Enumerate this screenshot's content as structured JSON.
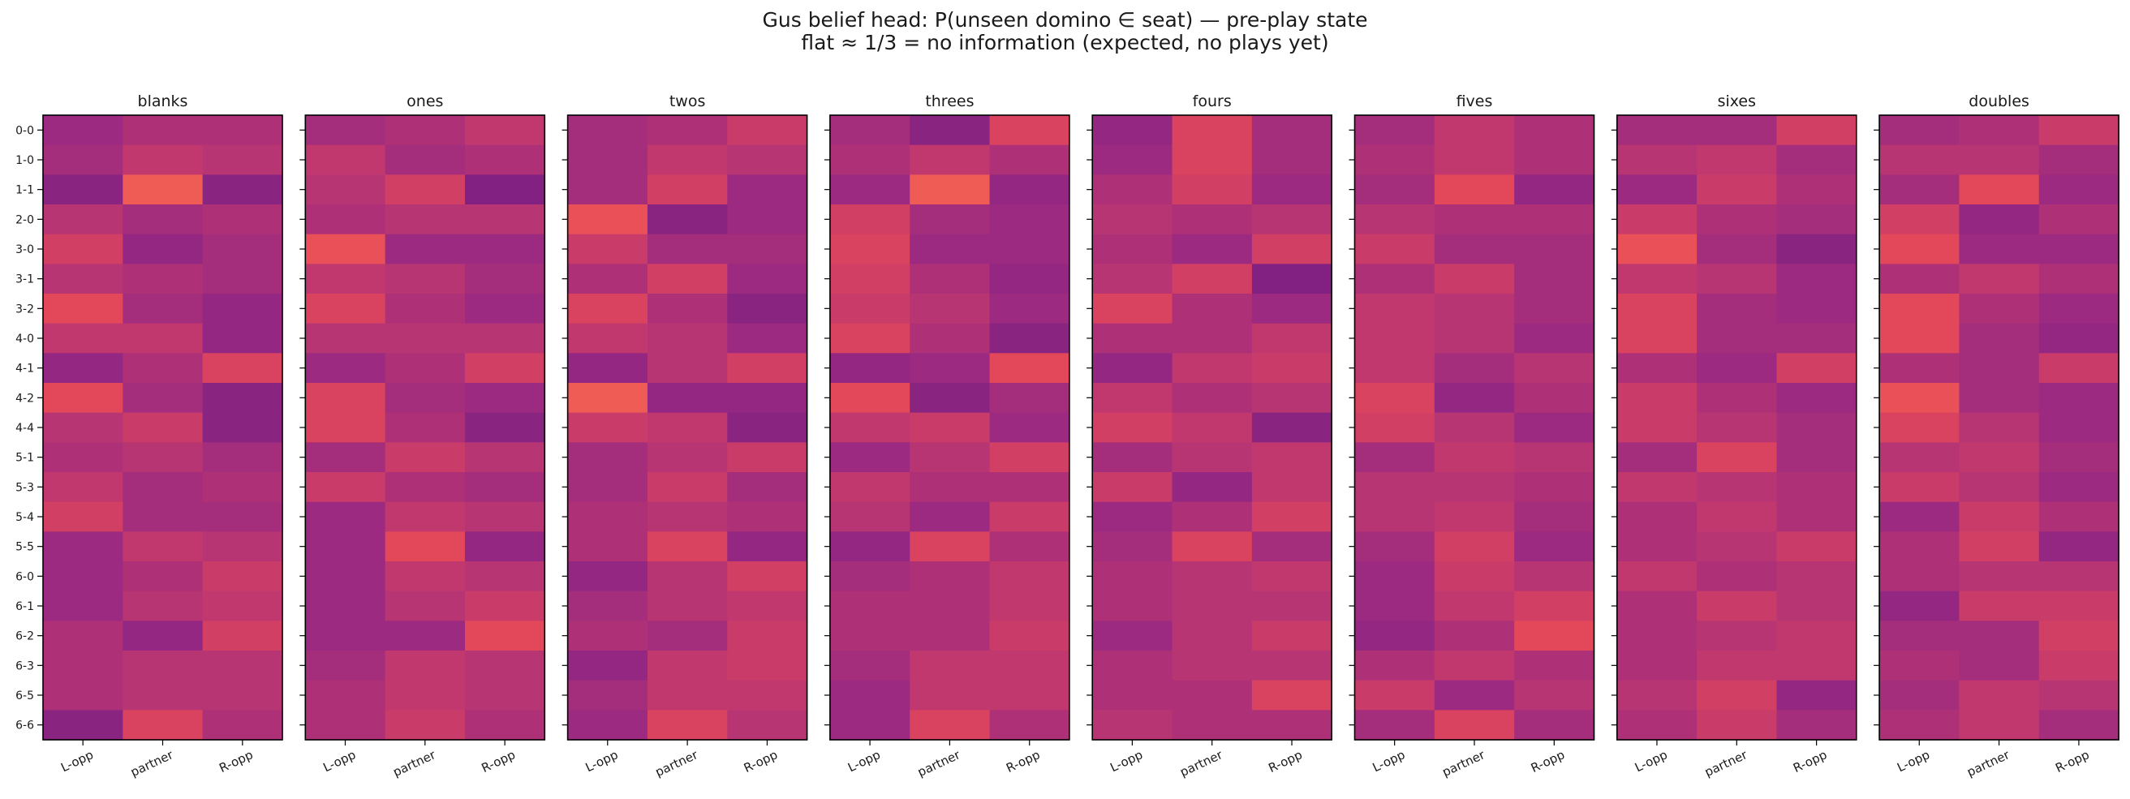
{
  "figure": {
    "title": "Gus belief head: P(unseen domino ∈ seat) — pre-play state",
    "subtitle": "flat ≈ 1/3 = no information (expected, no plays yet)"
  },
  "chart_data": {
    "type": "heatmap",
    "colormap": "plasma-like magma range (purple → red → orange)",
    "grid": false,
    "legend": "none",
    "rows": [
      "0-0",
      "1-0",
      "1-1",
      "2-0",
      "3-0",
      "3-1",
      "3-2",
      "4-0",
      "4-1",
      "4-2",
      "4-4",
      "5-1",
      "5-3",
      "5-4",
      "5-5",
      "6-0",
      "6-1",
      "6-2",
      "6-3",
      "6-5",
      "6-6"
    ],
    "columns": [
      "L-opp",
      "partner",
      "R-opp"
    ],
    "value_range": [
      0.24,
      0.42
    ],
    "panels": [
      {
        "title": "blanks",
        "values": [
          [
            0.3,
            0.32,
            0.32
          ],
          [
            0.31,
            0.34,
            0.33
          ],
          [
            0.28,
            0.4,
            0.28
          ],
          [
            0.33,
            0.31,
            0.32
          ],
          [
            0.36,
            0.29,
            0.31
          ],
          [
            0.33,
            0.32,
            0.31
          ],
          [
            0.38,
            0.31,
            0.29
          ],
          [
            0.34,
            0.34,
            0.29
          ],
          [
            0.29,
            0.32,
            0.37
          ],
          [
            0.38,
            0.31,
            0.28
          ],
          [
            0.33,
            0.35,
            0.28
          ],
          [
            0.32,
            0.33,
            0.31
          ],
          [
            0.34,
            0.31,
            0.32
          ],
          [
            0.36,
            0.31,
            0.31
          ],
          [
            0.3,
            0.34,
            0.33
          ],
          [
            0.3,
            0.32,
            0.35
          ],
          [
            0.3,
            0.33,
            0.34
          ],
          [
            0.32,
            0.29,
            0.36
          ],
          [
            0.32,
            0.33,
            0.33
          ],
          [
            0.32,
            0.33,
            0.33
          ],
          [
            0.28,
            0.37,
            0.32
          ]
        ]
      },
      {
        "title": "ones",
        "values": [
          [
            0.31,
            0.32,
            0.34
          ],
          [
            0.34,
            0.31,
            0.32
          ],
          [
            0.33,
            0.36,
            0.27
          ],
          [
            0.32,
            0.33,
            0.33
          ],
          [
            0.39,
            0.3,
            0.3
          ],
          [
            0.34,
            0.33,
            0.31
          ],
          [
            0.37,
            0.32,
            0.3
          ],
          [
            0.33,
            0.33,
            0.33
          ],
          [
            0.3,
            0.32,
            0.36
          ],
          [
            0.37,
            0.31,
            0.3
          ],
          [
            0.37,
            0.32,
            0.28
          ],
          [
            0.31,
            0.35,
            0.33
          ],
          [
            0.35,
            0.32,
            0.31
          ],
          [
            0.3,
            0.34,
            0.33
          ],
          [
            0.3,
            0.38,
            0.29
          ],
          [
            0.3,
            0.34,
            0.33
          ],
          [
            0.3,
            0.33,
            0.35
          ],
          [
            0.3,
            0.3,
            0.38
          ],
          [
            0.31,
            0.34,
            0.33
          ],
          [
            0.32,
            0.34,
            0.33
          ],
          [
            0.32,
            0.35,
            0.32
          ]
        ]
      },
      {
        "title": "twos",
        "values": [
          [
            0.31,
            0.32,
            0.35
          ],
          [
            0.31,
            0.34,
            0.33
          ],
          [
            0.31,
            0.36,
            0.3
          ],
          [
            0.39,
            0.28,
            0.3
          ],
          [
            0.35,
            0.31,
            0.31
          ],
          [
            0.32,
            0.36,
            0.3
          ],
          [
            0.37,
            0.32,
            0.28
          ],
          [
            0.34,
            0.33,
            0.3
          ],
          [
            0.29,
            0.33,
            0.36
          ],
          [
            0.4,
            0.29,
            0.29
          ],
          [
            0.35,
            0.34,
            0.28
          ],
          [
            0.31,
            0.33,
            0.35
          ],
          [
            0.31,
            0.35,
            0.31
          ],
          [
            0.32,
            0.33,
            0.32
          ],
          [
            0.32,
            0.37,
            0.29
          ],
          [
            0.29,
            0.33,
            0.36
          ],
          [
            0.31,
            0.33,
            0.34
          ],
          [
            0.32,
            0.31,
            0.35
          ],
          [
            0.29,
            0.34,
            0.35
          ],
          [
            0.31,
            0.34,
            0.34
          ],
          [
            0.3,
            0.37,
            0.33
          ]
        ]
      },
      {
        "title": "threes",
        "values": [
          [
            0.31,
            0.28,
            0.37
          ],
          [
            0.32,
            0.34,
            0.32
          ],
          [
            0.3,
            0.4,
            0.29
          ],
          [
            0.36,
            0.31,
            0.3
          ],
          [
            0.37,
            0.3,
            0.3
          ],
          [
            0.36,
            0.32,
            0.29
          ],
          [
            0.35,
            0.33,
            0.3
          ],
          [
            0.37,
            0.32,
            0.28
          ],
          [
            0.29,
            0.3,
            0.38
          ],
          [
            0.38,
            0.28,
            0.31
          ],
          [
            0.34,
            0.35,
            0.3
          ],
          [
            0.3,
            0.33,
            0.36
          ],
          [
            0.34,
            0.32,
            0.32
          ],
          [
            0.33,
            0.3,
            0.35
          ],
          [
            0.29,
            0.37,
            0.32
          ],
          [
            0.31,
            0.32,
            0.34
          ],
          [
            0.32,
            0.32,
            0.34
          ],
          [
            0.32,
            0.32,
            0.35
          ],
          [
            0.31,
            0.34,
            0.34
          ],
          [
            0.3,
            0.34,
            0.34
          ],
          [
            0.3,
            0.37,
            0.32
          ]
        ]
      },
      {
        "title": "fours",
        "values": [
          [
            0.29,
            0.37,
            0.31
          ],
          [
            0.3,
            0.37,
            0.31
          ],
          [
            0.32,
            0.36,
            0.3
          ],
          [
            0.33,
            0.32,
            0.33
          ],
          [
            0.32,
            0.3,
            0.36
          ],
          [
            0.33,
            0.36,
            0.27
          ],
          [
            0.37,
            0.32,
            0.3
          ],
          [
            0.32,
            0.32,
            0.34
          ],
          [
            0.29,
            0.34,
            0.35
          ],
          [
            0.34,
            0.32,
            0.33
          ],
          [
            0.36,
            0.34,
            0.28
          ],
          [
            0.31,
            0.33,
            0.34
          ],
          [
            0.35,
            0.29,
            0.34
          ],
          [
            0.3,
            0.32,
            0.36
          ],
          [
            0.31,
            0.37,
            0.31
          ],
          [
            0.32,
            0.33,
            0.34
          ],
          [
            0.32,
            0.33,
            0.33
          ],
          [
            0.3,
            0.33,
            0.35
          ],
          [
            0.32,
            0.33,
            0.33
          ],
          [
            0.32,
            0.32,
            0.37
          ],
          [
            0.33,
            0.32,
            0.32
          ]
        ]
      },
      {
        "title": "fives",
        "values": [
          [
            0.31,
            0.34,
            0.32
          ],
          [
            0.32,
            0.34,
            0.32
          ],
          [
            0.31,
            0.38,
            0.29
          ],
          [
            0.33,
            0.32,
            0.32
          ],
          [
            0.35,
            0.31,
            0.31
          ],
          [
            0.32,
            0.35,
            0.31
          ],
          [
            0.34,
            0.33,
            0.31
          ],
          [
            0.34,
            0.33,
            0.3
          ],
          [
            0.34,
            0.31,
            0.33
          ],
          [
            0.37,
            0.29,
            0.32
          ],
          [
            0.36,
            0.33,
            0.3
          ],
          [
            0.31,
            0.34,
            0.33
          ],
          [
            0.33,
            0.33,
            0.32
          ],
          [
            0.33,
            0.34,
            0.31
          ],
          [
            0.31,
            0.36,
            0.3
          ],
          [
            0.3,
            0.35,
            0.33
          ],
          [
            0.3,
            0.34,
            0.36
          ],
          [
            0.29,
            0.32,
            0.38
          ],
          [
            0.32,
            0.34,
            0.32
          ],
          [
            0.35,
            0.3,
            0.33
          ],
          [
            0.31,
            0.37,
            0.31
          ]
        ]
      },
      {
        "title": "sixes",
        "values": [
          [
            0.31,
            0.31,
            0.36
          ],
          [
            0.33,
            0.34,
            0.31
          ],
          [
            0.3,
            0.35,
            0.32
          ],
          [
            0.35,
            0.32,
            0.31
          ],
          [
            0.39,
            0.31,
            0.28
          ],
          [
            0.34,
            0.33,
            0.3
          ],
          [
            0.37,
            0.31,
            0.3
          ],
          [
            0.37,
            0.31,
            0.31
          ],
          [
            0.32,
            0.3,
            0.36
          ],
          [
            0.35,
            0.32,
            0.3
          ],
          [
            0.35,
            0.33,
            0.31
          ],
          [
            0.31,
            0.37,
            0.31
          ],
          [
            0.34,
            0.33,
            0.32
          ],
          [
            0.32,
            0.34,
            0.32
          ],
          [
            0.32,
            0.33,
            0.35
          ],
          [
            0.34,
            0.32,
            0.33
          ],
          [
            0.32,
            0.35,
            0.33
          ],
          [
            0.32,
            0.33,
            0.34
          ],
          [
            0.32,
            0.34,
            0.34
          ],
          [
            0.33,
            0.36,
            0.29
          ],
          [
            0.32,
            0.35,
            0.31
          ]
        ]
      },
      {
        "title": "doubles",
        "values": [
          [
            0.31,
            0.32,
            0.35
          ],
          [
            0.33,
            0.33,
            0.31
          ],
          [
            0.31,
            0.38,
            0.3
          ],
          [
            0.36,
            0.29,
            0.32
          ],
          [
            0.38,
            0.3,
            0.3
          ],
          [
            0.32,
            0.34,
            0.32
          ],
          [
            0.38,
            0.32,
            0.3
          ],
          [
            0.38,
            0.31,
            0.29
          ],
          [
            0.32,
            0.31,
            0.35
          ],
          [
            0.39,
            0.31,
            0.3
          ],
          [
            0.37,
            0.33,
            0.3
          ],
          [
            0.33,
            0.34,
            0.31
          ],
          [
            0.35,
            0.33,
            0.3
          ],
          [
            0.3,
            0.35,
            0.32
          ],
          [
            0.32,
            0.36,
            0.29
          ],
          [
            0.32,
            0.33,
            0.33
          ],
          [
            0.29,
            0.35,
            0.35
          ],
          [
            0.31,
            0.31,
            0.36
          ],
          [
            0.32,
            0.31,
            0.35
          ],
          [
            0.31,
            0.34,
            0.33
          ],
          [
            0.32,
            0.34,
            0.31
          ]
        ]
      }
    ]
  }
}
